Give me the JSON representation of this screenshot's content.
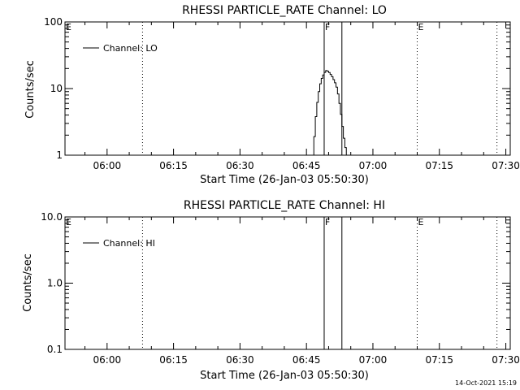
{
  "chart_data": [
    {
      "type": "line",
      "title": "RHESSI PARTICLE_RATE Channel: LO",
      "xlabel": "Start Time (26-Jan-03 05:50:30)",
      "ylabel": "Counts/sec",
      "y_scale": "log",
      "xlim": [
        "05:50:30",
        "07:31:00"
      ],
      "ylim": [
        1,
        100
      ],
      "x_tick_labels": [
        "06:00",
        "06:15",
        "06:30",
        "06:45",
        "07:00",
        "07:15",
        "07:30"
      ],
      "y_tick_labels": [
        "1",
        "10",
        "100"
      ],
      "legend": {
        "placement": "top-left",
        "entries": [
          "Channel: LO"
        ]
      },
      "dotted_lines": [
        "06:08:00",
        "07:10:00",
        "07:28:00"
      ],
      "solid_lines": [
        "06:49:00",
        "06:53:00"
      ],
      "flag_labels": [
        {
          "text": "E",
          "x": "05:50:30"
        },
        {
          "text": "F",
          "x": "06:49:00"
        },
        {
          "text": "E",
          "x": "07:10:00"
        }
      ],
      "series": [
        {
          "name": "Channel: LO",
          "x": [
            "06:46:20",
            "06:46:40",
            "06:47:00",
            "06:47:20",
            "06:47:40",
            "06:48:00",
            "06:48:20",
            "06:48:40",
            "06:49:00",
            "06:49:20",
            "06:49:40",
            "06:50:00",
            "06:50:20",
            "06:50:40",
            "06:51:00",
            "06:51:20",
            "06:51:40",
            "06:52:00",
            "06:52:20",
            "06:52:40",
            "06:53:00",
            "06:53:20",
            "06:53:40",
            "06:54:00"
          ],
          "values": [
            1.0,
            1.9,
            3.8,
            6.2,
            9.0,
            11.8,
            14.2,
            16.0,
            17.5,
            18.6,
            18.2,
            17.4,
            16.3,
            15.1,
            13.6,
            12.2,
            10.5,
            8.3,
            6.0,
            4.1,
            2.7,
            1.8,
            1.3,
            1.0
          ]
        }
      ]
    },
    {
      "type": "line",
      "title": "RHESSI PARTICLE_RATE Channel: HI",
      "xlabel": "Start Time (26-Jan-03 05:50:30)",
      "ylabel": "Counts/sec",
      "y_scale": "log",
      "xlim": [
        "05:50:30",
        "07:31:00"
      ],
      "ylim": [
        0.1,
        10
      ],
      "x_tick_labels": [
        "06:00",
        "06:15",
        "06:30",
        "06:45",
        "07:00",
        "07:15",
        "07:30"
      ],
      "y_tick_labels": [
        "0.1",
        "1.0",
        "10.0"
      ],
      "legend": {
        "placement": "top-left",
        "entries": [
          "Channel: HI"
        ]
      },
      "dotted_lines": [
        "06:08:00",
        "07:10:00",
        "07:28:00"
      ],
      "solid_lines": [
        "06:49:00",
        "06:53:00"
      ],
      "flag_labels": [
        {
          "text": "E",
          "x": "05:50:30"
        },
        {
          "text": "F",
          "x": "06:49:00"
        },
        {
          "text": "E",
          "x": "07:10:00"
        }
      ],
      "series": [
        {
          "name": "Channel: HI",
          "x": [],
          "values": []
        }
      ]
    }
  ],
  "footer": {
    "timestamp": "14-Oct-2021 15:19"
  }
}
